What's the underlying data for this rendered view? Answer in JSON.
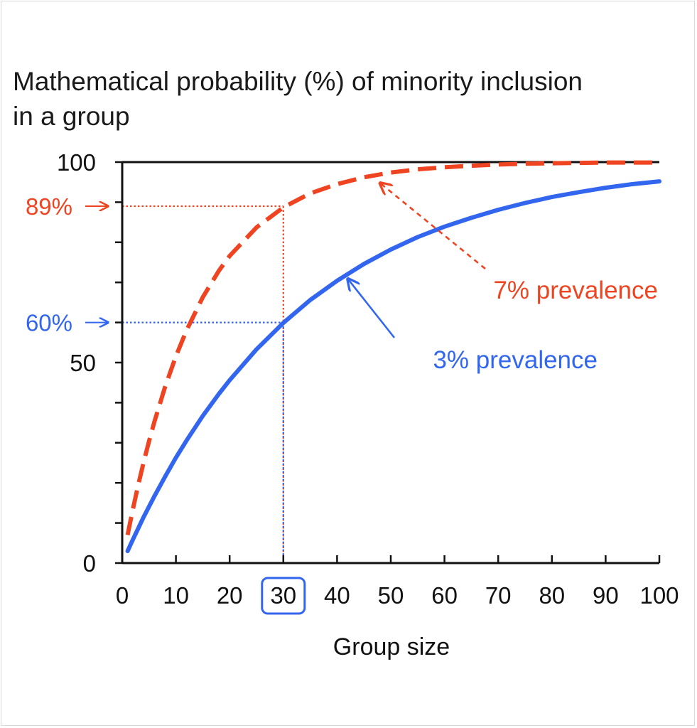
{
  "chart_data": {
    "type": "line",
    "title_line1": "Mathematical probability (%) of minority inclusion",
    "title_line2": "in a group",
    "xlabel": "Group size",
    "ylabel": "",
    "xlim": [
      0,
      100
    ],
    "ylim": [
      0,
      100
    ],
    "x_ticks": [
      0,
      10,
      20,
      30,
      40,
      50,
      60,
      70,
      80,
      90,
      100
    ],
    "y_tick_labels": [
      "0",
      "50",
      "100"
    ],
    "y_tick_values": [
      0,
      50,
      100
    ],
    "y_minor_step": 10,
    "grid": false,
    "highlighted_x": 30,
    "series": [
      {
        "name": "7% prevalence",
        "color": "#ee4422",
        "style": "dashed",
        "x": [
          1,
          2,
          3,
          4,
          5,
          6,
          8,
          10,
          12,
          15,
          18,
          20,
          25,
          30,
          35,
          40,
          45,
          50,
          55,
          60,
          65,
          70,
          75,
          80,
          85,
          90,
          95,
          100
        ],
        "values": [
          7.0,
          13.5,
          19.6,
          25.2,
          30.4,
          35.3,
          44.0,
          51.6,
          58.1,
          66.3,
          72.9,
          76.6,
          83.7,
          88.7,
          92.2,
          94.5,
          96.2,
          97.4,
          98.2,
          98.7,
          99.1,
          99.4,
          99.6,
          99.7,
          99.8,
          99.9,
          99.9,
          99.9
        ]
      },
      {
        "name": "3% prevalence",
        "color": "#3366ee",
        "style": "solid",
        "x": [
          1,
          2,
          3,
          4,
          5,
          6,
          8,
          10,
          12,
          15,
          18,
          20,
          25,
          30,
          35,
          40,
          45,
          50,
          55,
          60,
          65,
          70,
          75,
          80,
          85,
          90,
          95,
          100
        ],
        "values": [
          3.0,
          5.9,
          8.7,
          11.5,
          14.1,
          16.7,
          21.6,
          26.3,
          30.6,
          36.7,
          42.2,
          45.6,
          53.3,
          59.9,
          65.6,
          70.4,
          74.6,
          78.2,
          81.3,
          83.9,
          86.1,
          88.1,
          89.8,
          91.3,
          92.5,
          93.6,
          94.5,
          95.2
        ]
      }
    ],
    "reference_lines": [
      {
        "label": "89%",
        "value": 89,
        "color": "#ee4422"
      },
      {
        "label": "60%",
        "value": 60,
        "color": "#3366ee"
      }
    ],
    "annotations": [
      {
        "text": "7% prevalence",
        "color": "#ee4422",
        "points_to_x": 48,
        "points_to_y": 96.2
      },
      {
        "text": "3% prevalence",
        "color": "#3366ee",
        "points_to_x": 42,
        "points_to_y": 72.3
      }
    ]
  }
}
